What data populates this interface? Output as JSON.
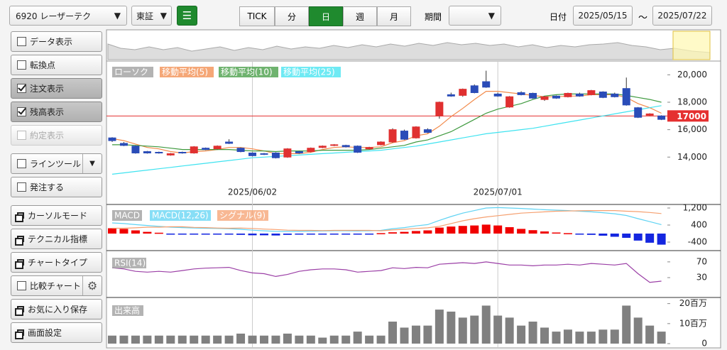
{
  "toolbar": {
    "symbol": "6920 レーザーテク",
    "market": "東証",
    "intervals": [
      {
        "label": "TICK",
        "active": false
      },
      {
        "label": "分",
        "active": false
      },
      {
        "label": "日",
        "active": true
      },
      {
        "label": "週",
        "active": false
      },
      {
        "label": "月",
        "active": false
      }
    ],
    "period_label": "期間",
    "date_label": "日付",
    "date_from": "2025/05/15",
    "date_sep": "～",
    "date_to": "2025/07/22"
  },
  "sidebar": {
    "items": [
      {
        "label": "データ表示",
        "kind": "checkbox",
        "checked": false
      },
      {
        "label": "転換点",
        "kind": "checkbox",
        "checked": false
      },
      {
        "label": "注文表示",
        "kind": "checkbox",
        "checked": true
      },
      {
        "label": "残高表示",
        "kind": "checkbox",
        "checked": true
      },
      {
        "label": "約定表示",
        "kind": "checkbox",
        "checked": false,
        "disabled": true
      },
      {
        "label": "ラインツール",
        "kind": "checkbox",
        "checked": false,
        "dropdown": true
      },
      {
        "label": "発注する",
        "kind": "checkbox",
        "checked": false
      },
      {
        "label": "カーソルモード",
        "kind": "window"
      },
      {
        "label": "テクニカル指標",
        "kind": "window"
      },
      {
        "label": "チャートタイプ",
        "kind": "window"
      },
      {
        "label": "比較チャート",
        "kind": "checkbox",
        "checked": false,
        "gear": true
      },
      {
        "label": "お気に入り保存",
        "kind": "window"
      },
      {
        "label": "画面設定",
        "kind": "window"
      }
    ]
  },
  "chart": {
    "type": "candlestick",
    "candle_name": "ローソク",
    "x": [
      null,
      null,
      null,
      null,
      null,
      null,
      null,
      null,
      null,
      null,
      null,
      null,
      "2025/06/02",
      null,
      null,
      null,
      null,
      null,
      null,
      null,
      null,
      null,
      null,
      null,
      null,
      null,
      null,
      null,
      null,
      null,
      null,
      null,
      null,
      "2025/07/01",
      null,
      null,
      null,
      null,
      null,
      null,
      null,
      null,
      null,
      null,
      null,
      null,
      null,
      null
    ],
    "ohlc": [
      [
        15400,
        15450,
        15100,
        15200
      ],
      [
        15000,
        15100,
        14800,
        14850
      ],
      [
        14800,
        14850,
        14250,
        14300
      ],
      [
        14400,
        14450,
        14250,
        14300
      ],
      [
        14350,
        14400,
        14250,
        14300
      ],
      [
        14150,
        14300,
        14100,
        14250
      ],
      [
        14350,
        14400,
        14250,
        14300
      ],
      [
        14300,
        14800,
        14250,
        14750
      ],
      [
        14650,
        14700,
        14500,
        14550
      ],
      [
        14600,
        14850,
        14550,
        14800
      ],
      [
        15100,
        15300,
        14950,
        15000
      ],
      [
        14650,
        14700,
        14350,
        14400
      ],
      [
        14300,
        14350,
        14050,
        14100
      ],
      [
        14250,
        14300,
        14150,
        14200
      ],
      [
        14300,
        14350,
        13900,
        13950
      ],
      [
        14000,
        14650,
        13950,
        14600
      ],
      [
        14400,
        14450,
        14250,
        14300
      ],
      [
        14400,
        14700,
        14350,
        14650
      ],
      [
        14700,
        14850,
        14650,
        14800
      ],
      [
        14850,
        14950,
        14800,
        14900
      ],
      [
        14850,
        14900,
        14700,
        14750
      ],
      [
        14800,
        14850,
        14300,
        14350
      ],
      [
        14600,
        14750,
        14550,
        14700
      ],
      [
        14900,
        15150,
        14850,
        15100
      ],
      [
        15100,
        16100,
        15050,
        16000
      ],
      [
        15900,
        16000,
        15250,
        15300
      ],
      [
        15400,
        16250,
        15350,
        16200
      ],
      [
        16000,
        16100,
        15750,
        15800
      ],
      [
        17000,
        18050,
        16800,
        18000
      ],
      [
        18550,
        18700,
        18400,
        18450
      ],
      [
        18500,
        19000,
        18400,
        18950
      ],
      [
        19200,
        19300,
        18650,
        18700
      ],
      [
        19500,
        20300,
        19050,
        19100
      ],
      [
        18600,
        18700,
        18400,
        18450
      ],
      [
        17650,
        18450,
        17600,
        18400
      ],
      [
        18700,
        18800,
        18500,
        18550
      ],
      [
        18650,
        18700,
        18250,
        18300
      ],
      [
        18200,
        18450,
        18100,
        18400
      ],
      [
        18450,
        18500,
        18250,
        18300
      ],
      [
        18400,
        18700,
        18350,
        18650
      ],
      [
        18600,
        18700,
        18400,
        18450
      ],
      [
        18550,
        18900,
        18500,
        18850
      ],
      [
        18750,
        18800,
        18300,
        18350
      ],
      [
        18600,
        18700,
        18350,
        18400
      ],
      [
        19000,
        19800,
        17750,
        17800
      ],
      [
        17600,
        17650,
        16850,
        16900
      ],
      [
        17050,
        17200,
        17000,
        17150
      ],
      [
        17000,
        17050,
        16700,
        16750
      ]
    ],
    "up_color": "#e03030",
    "down_color": "#2a4cb8",
    "ylim": [
      10700,
      20900
    ],
    "yticks": [
      {
        "value": 20000,
        "label": "20,000"
      },
      {
        "value": 18000,
        "label": "18,000"
      },
      {
        "value": 16000,
        "label": "16,000"
      },
      {
        "value": 14000,
        "label": "14,000"
      }
    ],
    "price_line": 17000,
    "price_line_color": "#e53030",
    "series": [
      {
        "name": "移動平均(5)",
        "color": "#f28a4a",
        "values": [
          15350,
          15200,
          14950,
          14700,
          14600,
          14400,
          14300,
          14400,
          14450,
          14550,
          14700,
          14700,
          14600,
          14450,
          14250,
          14250,
          14250,
          14350,
          14550,
          14700,
          14750,
          14700,
          14700,
          14750,
          15050,
          15200,
          15550,
          15700,
          16250,
          16950,
          17550,
          18200,
          18800,
          18800,
          18700,
          18600,
          18500,
          18400,
          18400,
          18450,
          18450,
          18550,
          18550,
          18550,
          18350,
          17900,
          17600,
          17200
        ]
      },
      {
        "name": "移動平均(10)",
        "color": "#3f9a3f",
        "values": [
          14900,
          14900,
          14850,
          14800,
          14750,
          14650,
          14550,
          14550,
          14550,
          14550,
          14550,
          14500,
          14450,
          14450,
          14400,
          14450,
          14450,
          14450,
          14500,
          14500,
          14500,
          14500,
          14550,
          14650,
          14750,
          14850,
          15100,
          15250,
          15550,
          15850,
          16300,
          16750,
          17200,
          17500,
          17700,
          17900,
          18200,
          18450,
          18550,
          18600,
          18600,
          18600,
          18600,
          18600,
          18500,
          18350,
          18200,
          18000
        ]
      },
      {
        "name": "移動平均(25)",
        "color": "#3fe3f0",
        "values": [
          12750,
          12850,
          12950,
          13050,
          13150,
          13250,
          13350,
          13450,
          13550,
          13650,
          13750,
          13850,
          13950,
          14000,
          14050,
          14100,
          14150,
          14200,
          14250,
          14300,
          14350,
          14400,
          14450,
          14500,
          14600,
          14700,
          14800,
          14950,
          15100,
          15250,
          15400,
          15550,
          15700,
          15800,
          15900,
          16000,
          16100,
          16250,
          16400,
          16550,
          16700,
          16850,
          17000,
          17150,
          17300,
          17450,
          17600,
          17750
        ]
      }
    ],
    "macd": {
      "title": "MACD",
      "ylim": [
        -700,
        1300
      ],
      "yticks": [
        {
          "value": 1200,
          "label": "1,200"
        },
        400,
        -400
      ],
      "series": [
        {
          "name": "MACD(12,26)",
          "color": "#5fd3f3",
          "values": [
            500,
            470,
            420,
            380,
            340,
            300,
            280,
            260,
            250,
            240,
            230,
            200,
            160,
            130,
            100,
            100,
            100,
            110,
            120,
            130,
            130,
            120,
            130,
            150,
            230,
            280,
            360,
            420,
            620,
            800,
            960,
            1080,
            1200,
            1220,
            1200,
            1180,
            1150,
            1120,
            1100,
            1080,
            1050,
            1020,
            980,
            930,
            850,
            700,
            560,
            420
          ]
        },
        {
          "name": "シグナル(9)",
          "color": "#f5a070",
          "values": [
            250,
            250,
            270,
            300,
            300,
            320,
            320,
            290,
            280,
            260,
            250,
            260,
            240,
            210,
            190,
            160,
            150,
            150,
            140,
            150,
            150,
            150,
            150,
            130,
            170,
            200,
            240,
            270,
            340,
            470,
            600,
            700,
            780,
            840,
            900,
            960,
            990,
            1020,
            1050,
            1060,
            1070,
            1080,
            1080,
            1080,
            1050,
            1030,
            990,
            940
          ]
        }
      ],
      "histogram": [
        250,
        220,
        150,
        80,
        40,
        -20,
        -40,
        -30,
        -30,
        -20,
        -20,
        -60,
        -80,
        -80,
        -90,
        -60,
        -50,
        -40,
        -20,
        -20,
        -20,
        -30,
        -20,
        20,
        60,
        80,
        120,
        150,
        280,
        330,
        360,
        380,
        420,
        380,
        300,
        220,
        160,
        100,
        50,
        20,
        -20,
        -60,
        -100,
        -150,
        -200,
        -330,
        -430,
        -520
      ],
      "hist_up_color": "#f00000",
      "hist_down_color": "#1426e0"
    },
    "rsi": {
      "name": "RSI(14)",
      "color": "#9b3fa6",
      "ylim": [
        -15,
        95
      ],
      "yticks": [
        70,
        30
      ],
      "values": [
        55,
        52,
        46,
        44,
        46,
        44,
        48,
        52,
        54,
        55,
        56,
        48,
        42,
        40,
        33,
        38,
        46,
        50,
        52,
        52,
        50,
        44,
        46,
        48,
        55,
        53,
        56,
        55,
        64,
        66,
        68,
        66,
        70,
        66,
        62,
        62,
        60,
        62,
        62,
        64,
        62,
        66,
        64,
        62,
        66,
        40,
        18,
        21
      ]
    },
    "volume": {
      "name": "出来高",
      "color": "#808080",
      "ylim": [
        0,
        22
      ],
      "yticks": [
        {
          "value": 20,
          "label": "20百万"
        },
        {
          "value": 10,
          "label": "10百万"
        },
        0
      ],
      "values": [
        4,
        4,
        4,
        4,
        4,
        4,
        4,
        4,
        4,
        4,
        4,
        5,
        4,
        4,
        4,
        5,
        4,
        4,
        3,
        4,
        4,
        6,
        4,
        4,
        11,
        8,
        9,
        9,
        17,
        16,
        13,
        14,
        19,
        14,
        13,
        9,
        11,
        8,
        6,
        7,
        6,
        6,
        7,
        7,
        19,
        13,
        9,
        6
      ]
    }
  }
}
